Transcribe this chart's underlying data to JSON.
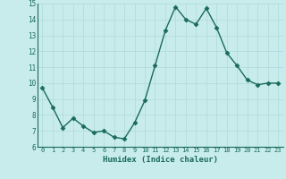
{
  "x": [
    0,
    1,
    2,
    3,
    4,
    5,
    6,
    7,
    8,
    9,
    10,
    11,
    12,
    13,
    14,
    15,
    16,
    17,
    18,
    19,
    20,
    21,
    22,
    23
  ],
  "y": [
    9.7,
    8.5,
    7.2,
    7.8,
    7.3,
    6.9,
    7.0,
    6.6,
    6.5,
    7.5,
    8.9,
    11.1,
    13.3,
    14.8,
    14.0,
    13.7,
    14.7,
    13.5,
    11.9,
    11.1,
    10.2,
    9.9,
    10.0,
    10.0
  ],
  "xlabel": "Humidex (Indice chaleur)",
  "ylim": [
    6,
    15
  ],
  "xlim_min": -0.5,
  "xlim_max": 23.5,
  "yticks": [
    6,
    7,
    8,
    9,
    10,
    11,
    12,
    13,
    14,
    15
  ],
  "xticks": [
    0,
    1,
    2,
    3,
    4,
    5,
    6,
    7,
    8,
    9,
    10,
    11,
    12,
    13,
    14,
    15,
    16,
    17,
    18,
    19,
    20,
    21,
    22,
    23
  ],
  "line_color": "#1a6b5a",
  "marker_color": "#1a6b5a",
  "bg_color": "#c8ecec",
  "grid_color": "#b0d8d8",
  "tick_label_color": "#1a6b5a",
  "xlabel_color": "#1a6b5a",
  "marker": "D",
  "markersize": 2.5,
  "linewidth": 1.0
}
